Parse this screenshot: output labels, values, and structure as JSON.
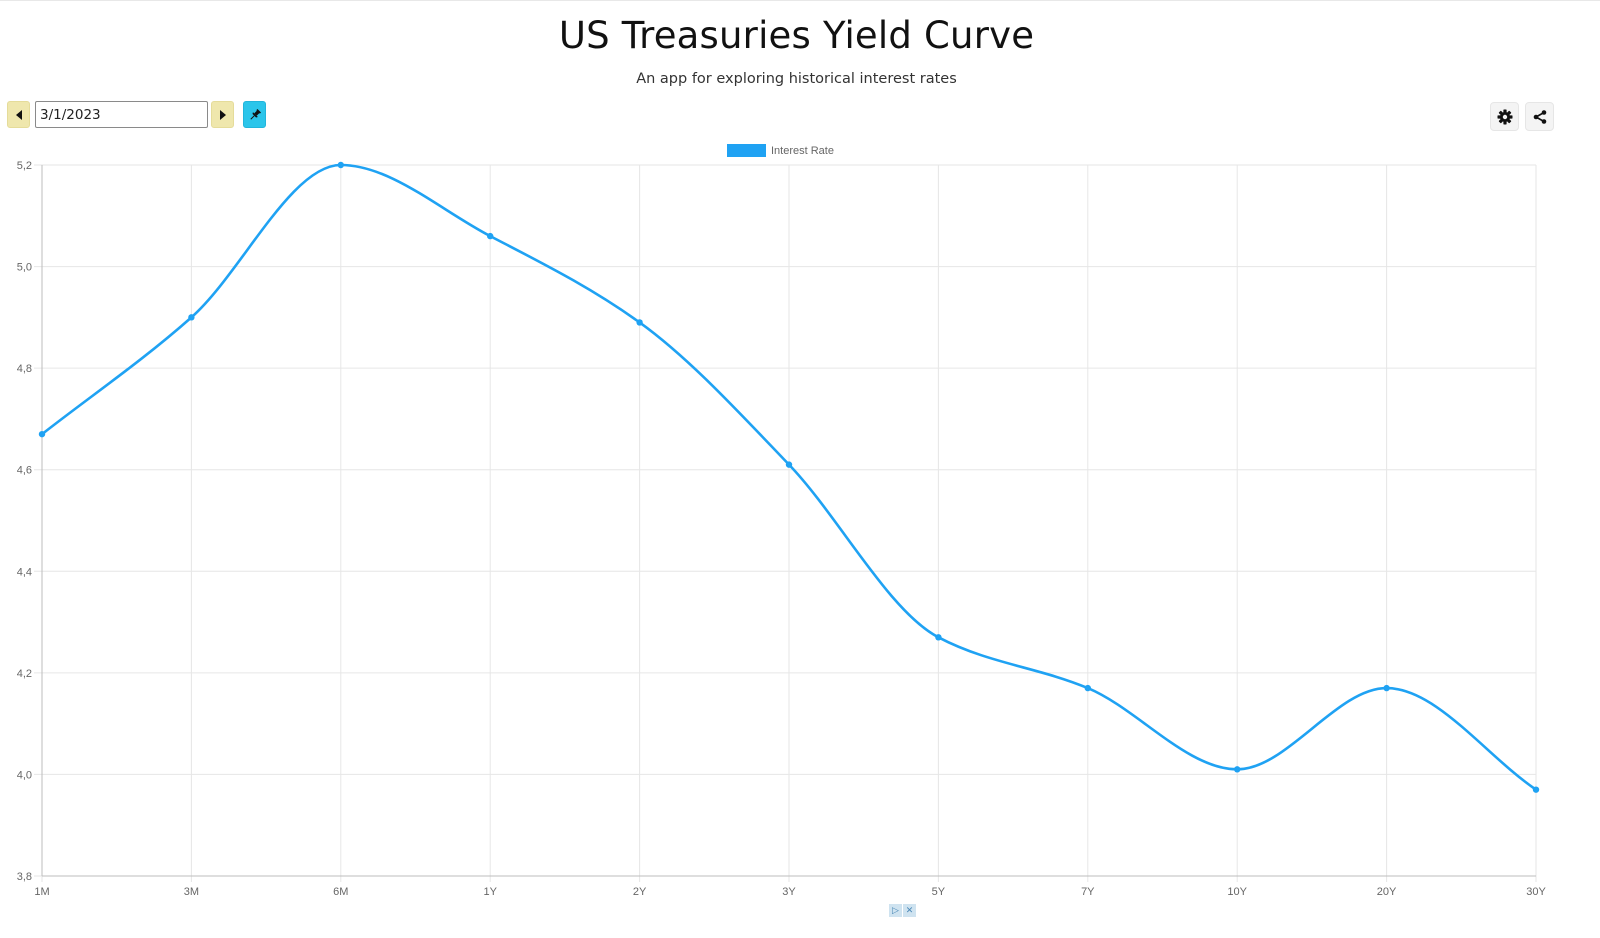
{
  "header": {
    "title": "US Treasuries Yield Curve",
    "subtitle": "An app for exploring historical interest rates"
  },
  "toolbar": {
    "date_value": "3/1/2023",
    "prev_icon": "caret-left-icon",
    "next_icon": "caret-right-icon",
    "pin_icon": "pin-icon",
    "settings_icon": "gear-icon",
    "share_icon": "share-icon"
  },
  "colors": {
    "series": "#1fa2f3",
    "nav_button": "#efe7ad",
    "pin_button": "#2bc5ea",
    "grid": "#e6e6e6"
  },
  "chart_data": {
    "type": "line",
    "categories": [
      "1M",
      "3M",
      "6M",
      "1Y",
      "2Y",
      "3Y",
      "5Y",
      "7Y",
      "10Y",
      "20Y",
      "30Y"
    ],
    "series": [
      {
        "name": "Interest Rate",
        "values": [
          4.67,
          4.9,
          5.2,
          5.06,
          4.89,
          4.61,
          4.27,
          4.17,
          4.01,
          4.17,
          3.97
        ]
      }
    ],
    "ylim": [
      3.8,
      5.2
    ],
    "yticks": [
      "3,8",
      "4,0",
      "4,2",
      "4,4",
      "4,6",
      "4,8",
      "5,0",
      "5,2"
    ],
    "grid": true,
    "legend": "top-center",
    "curve": "smooth"
  },
  "ad": {
    "play_glyph": "▷",
    "close_glyph": "✕"
  }
}
